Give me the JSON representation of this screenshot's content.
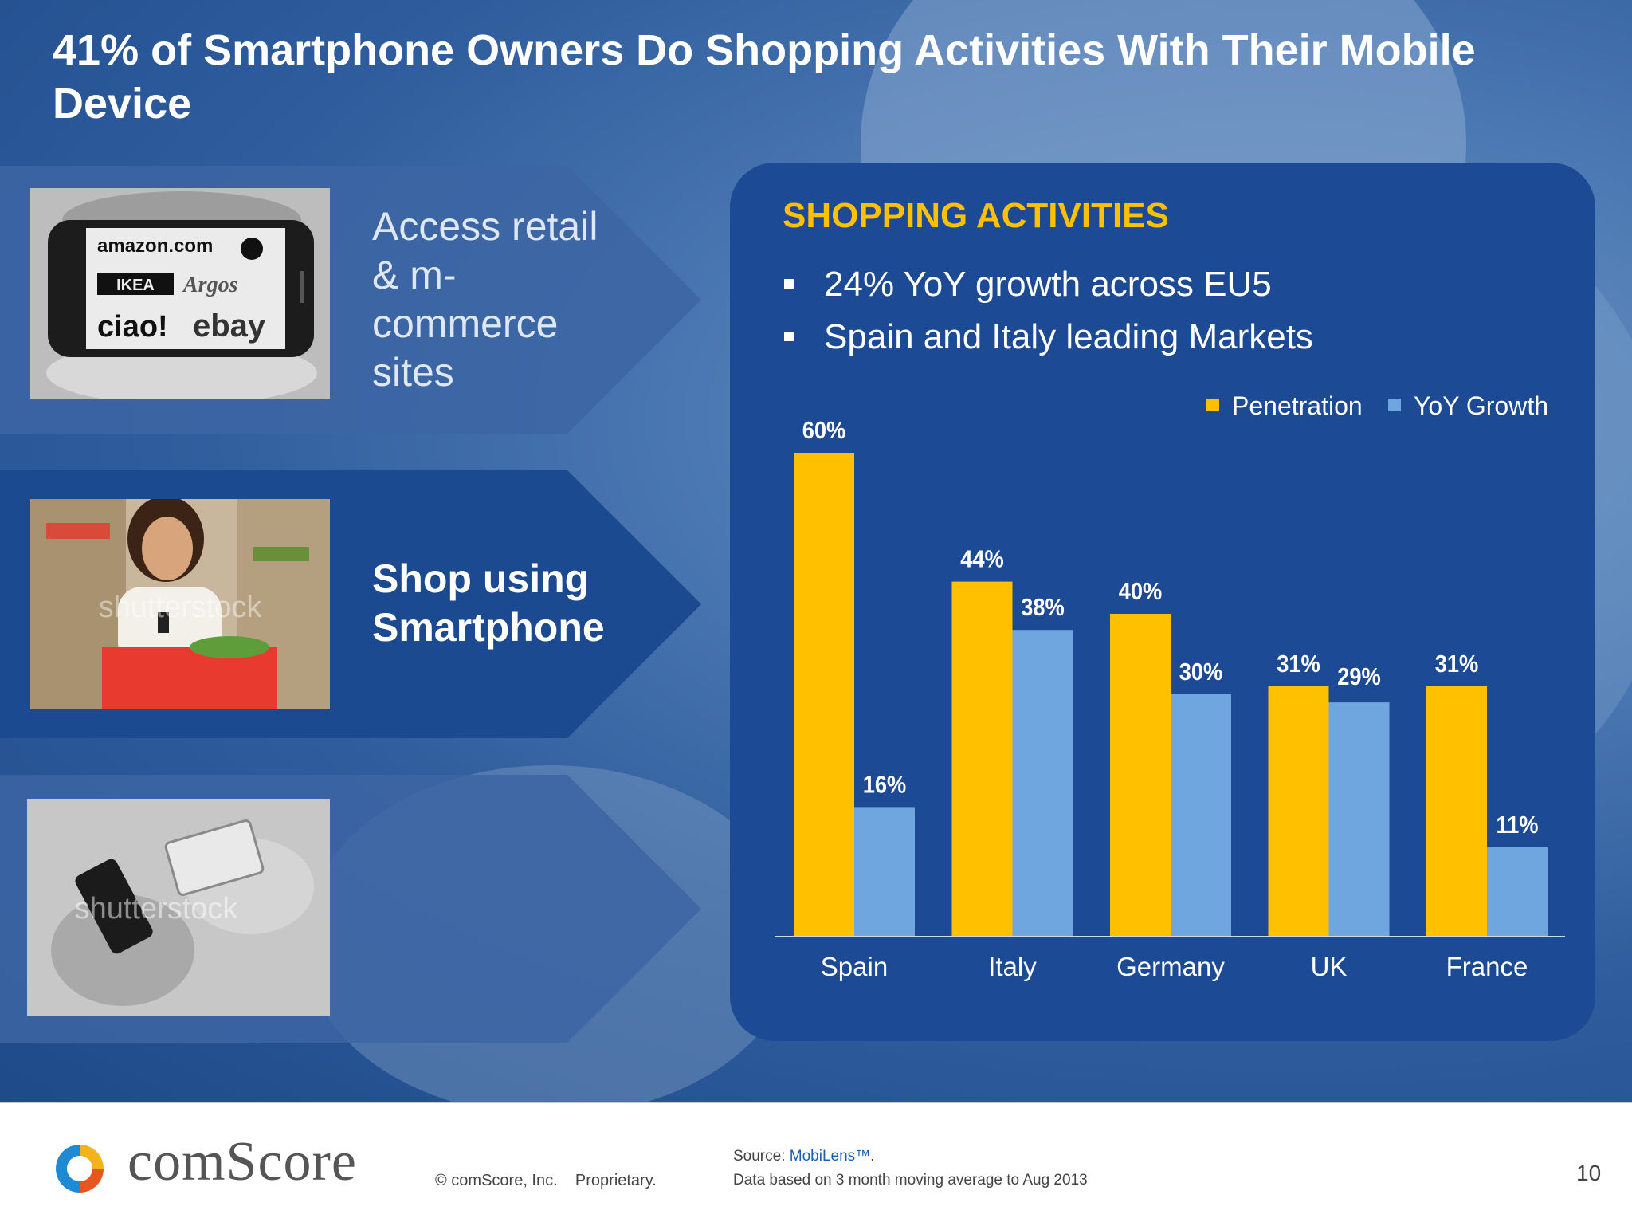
{
  "slide": {
    "title": "41% of Smartphone Owners Do Shopping Activities With Their Mobile Device"
  },
  "arrows": [
    {
      "text": "Access retail & m-commerce sites",
      "highlighted": false
    },
    {
      "text": "Shop using Smartphone",
      "highlighted": true
    },
    {
      "text": "",
      "highlighted": false
    }
  ],
  "photos": {
    "phone_brands": [
      "amazon.com",
      "IKEA",
      "Argos",
      "ciao!",
      "ebay"
    ],
    "watermark": "shutterstock"
  },
  "panel": {
    "heading": "SHOPPING ACTIVITIES",
    "bullets": [
      "24% YoY growth across EU5",
      "Spain and Italy leading Markets"
    ]
  },
  "chart_data": {
    "type": "bar",
    "categories": [
      "Spain",
      "Italy",
      "Germany",
      "UK",
      "France"
    ],
    "series": [
      {
        "name": "Penetration",
        "values": [
          60,
          44,
          40,
          31,
          31
        ],
        "labels": [
          "60%",
          "44%",
          "40%",
          "31%",
          "31%"
        ],
        "color": "#ffc000"
      },
      {
        "name": "YoY Growth",
        "values": [
          16,
          38,
          30,
          29,
          11
        ],
        "labels": [
          "16%",
          "38%",
          "30%",
          "29%",
          "11%"
        ],
        "color": "#6fa6e0"
      }
    ],
    "ylim": [
      0,
      60
    ],
    "grid": false,
    "legend_position": "top-right",
    "title": "",
    "xlabel": "",
    "ylabel": ""
  },
  "footer": {
    "brand": "comScore",
    "copyright": "© comScore, Inc.",
    "proprietary": "Proprietary.",
    "source_prefix": "Source:",
    "source_link": "MobiLens™",
    "source_suffix": ".",
    "source_note": "Data based on 3 month moving average to Aug 2013",
    "page_number": "10"
  },
  "colors": {
    "accent": "#ffc000",
    "panel": "#1d4a94",
    "bar_secondary": "#6fa6e0",
    "link": "#1a5fb4"
  }
}
